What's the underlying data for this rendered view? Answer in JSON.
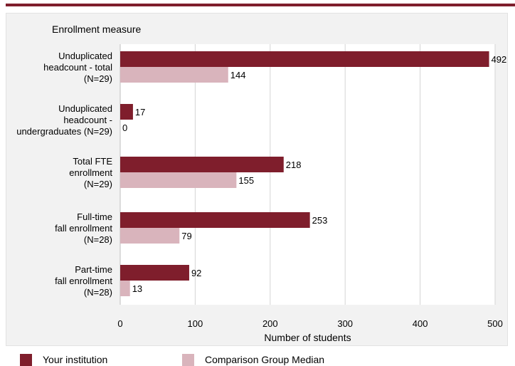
{
  "chart_data": {
    "type": "bar",
    "orientation": "horizontal",
    "title": "Enrollment measure",
    "xlabel": "Number of students",
    "xlim": [
      0,
      500
    ],
    "xticks": [
      0,
      100,
      200,
      300,
      400,
      500
    ],
    "grid": true,
    "legend_position": "bottom",
    "categories": [
      [
        "Unduplicated",
        "headcount - total",
        "(N=29)"
      ],
      [
        "Unduplicated",
        "headcount -",
        "undergraduates (N=29)"
      ],
      [
        "Total FTE",
        "enrollment",
        "(N=29)"
      ],
      [
        "Full-time",
        "fall enrollment",
        "(N=28)"
      ],
      [
        "Part-time",
        "fall enrollment",
        "(N=28)"
      ]
    ],
    "series": [
      {
        "name": "Your institution",
        "color": "#7f1e2c",
        "values": [
          492,
          17,
          218,
          253,
          92
        ]
      },
      {
        "name": "Comparison Group Median",
        "color": "#d9b4bc",
        "values": [
          144,
          0,
          155,
          79,
          13
        ]
      }
    ]
  }
}
